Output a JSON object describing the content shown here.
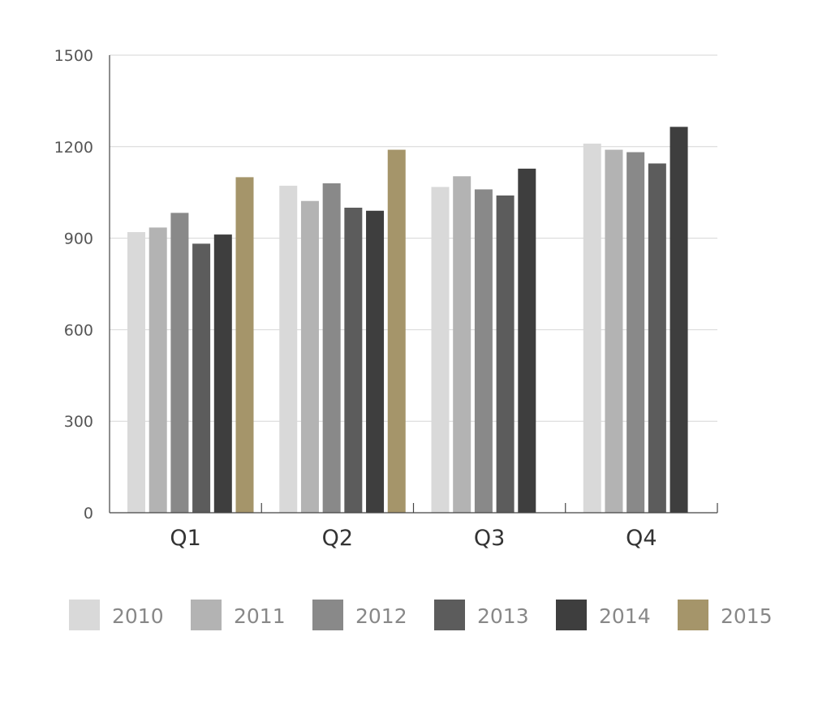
{
  "chart_data": {
    "type": "bar",
    "title": "",
    "xlabel": "",
    "ylabel": "",
    "categories": [
      "Q1",
      "Q2",
      "Q3",
      "Q4"
    ],
    "ylim": [
      0,
      1500
    ],
    "yticks": [
      0,
      300,
      600,
      900,
      1200,
      1500
    ],
    "grid": true,
    "legend_position": "bottom",
    "series": [
      {
        "name": "2010",
        "color": "#d9d9d9",
        "values": [
          920,
          1072,
          1068,
          1210
        ]
      },
      {
        "name": "2011",
        "color": "#b3b3b3",
        "values": [
          935,
          1022,
          1103,
          1190
        ]
      },
      {
        "name": "2012",
        "color": "#898989",
        "values": [
          983,
          1080,
          1060,
          1182
        ]
      },
      {
        "name": "2013",
        "color": "#5c5c5c",
        "values": [
          882,
          1000,
          1040,
          1145
        ]
      },
      {
        "name": "2014",
        "color": "#3e3e3e",
        "values": [
          912,
          990,
          1128,
          1265
        ]
      },
      {
        "name": "2015",
        "color": "#a5956a",
        "values": [
          1100,
          1190,
          null,
          null
        ]
      }
    ]
  }
}
